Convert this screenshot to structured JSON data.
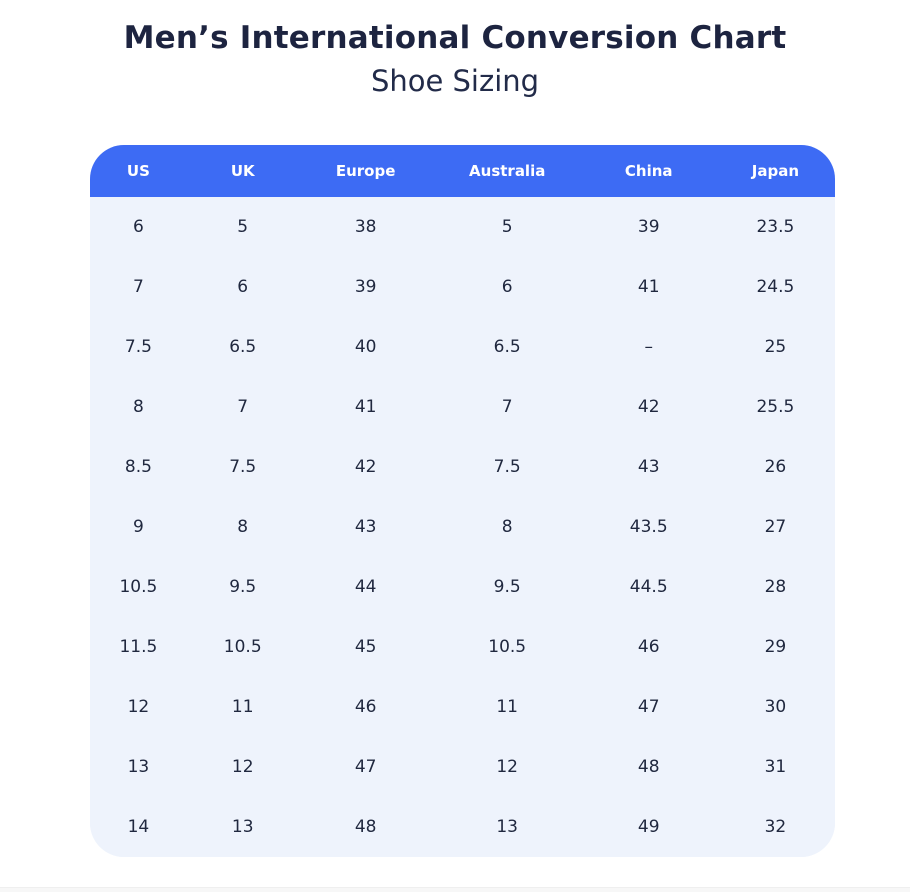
{
  "page": {
    "title": "Men’s International Conversion Chart",
    "subtitle": "Shoe Sizing"
  },
  "colors": {
    "header_bg": "#3d6bf4",
    "header_text": "#ffffff",
    "body_bg": "#eef3fc",
    "cell_text": "#20283f",
    "title_text": "#1d2440"
  },
  "table": {
    "columns": [
      "US",
      "UK",
      "Europe",
      "Australia",
      "China",
      "Japan"
    ],
    "column_widths_percent": [
      13,
      15,
      18,
      20,
      18,
      16
    ],
    "rows": [
      [
        "6",
        "5",
        "38",
        "5",
        "39",
        "23.5"
      ],
      [
        "7",
        "6",
        "39",
        "6",
        "41",
        "24.5"
      ],
      [
        "7.5",
        "6.5",
        "40",
        "6.5",
        "–",
        "25"
      ],
      [
        "8",
        "7",
        "41",
        "7",
        "42",
        "25.5"
      ],
      [
        "8.5",
        "7.5",
        "42",
        "7.5",
        "43",
        "26"
      ],
      [
        "9",
        "8",
        "43",
        "8",
        "43.5",
        "27"
      ],
      [
        "10.5",
        "9.5",
        "44",
        "9.5",
        "44.5",
        "28"
      ],
      [
        "11.5",
        "10.5",
        "45",
        "10.5",
        "46",
        "29"
      ],
      [
        "12",
        "11",
        "46",
        "11",
        "47",
        "30"
      ],
      [
        "13",
        "12",
        "47",
        "12",
        "48",
        "31"
      ],
      [
        "14",
        "13",
        "48",
        "13",
        "49",
        "32"
      ]
    ]
  },
  "chart_data": {
    "type": "table",
    "title": "Men’s International Conversion Chart",
    "subtitle": "Shoe Sizing",
    "columns": [
      "US",
      "UK",
      "Europe",
      "Australia",
      "China",
      "Japan"
    ],
    "rows": [
      [
        "6",
        "5",
        "38",
        "5",
        "39",
        "23.5"
      ],
      [
        "7",
        "6",
        "39",
        "6",
        "41",
        "24.5"
      ],
      [
        "7.5",
        "6.5",
        "40",
        "6.5",
        "–",
        "25"
      ],
      [
        "8",
        "7",
        "41",
        "7",
        "42",
        "25.5"
      ],
      [
        "8.5",
        "7.5",
        "42",
        "7.5",
        "43",
        "26"
      ],
      [
        "9",
        "8",
        "43",
        "8",
        "43.5",
        "27"
      ],
      [
        "10.5",
        "9.5",
        "44",
        "9.5",
        "44.5",
        "28"
      ],
      [
        "11.5",
        "10.5",
        "45",
        "10.5",
        "46",
        "29"
      ],
      [
        "12",
        "11",
        "46",
        "11",
        "47",
        "30"
      ],
      [
        "13",
        "12",
        "47",
        "12",
        "48",
        "31"
      ],
      [
        "14",
        "13",
        "48",
        "13",
        "49",
        "32"
      ]
    ]
  }
}
